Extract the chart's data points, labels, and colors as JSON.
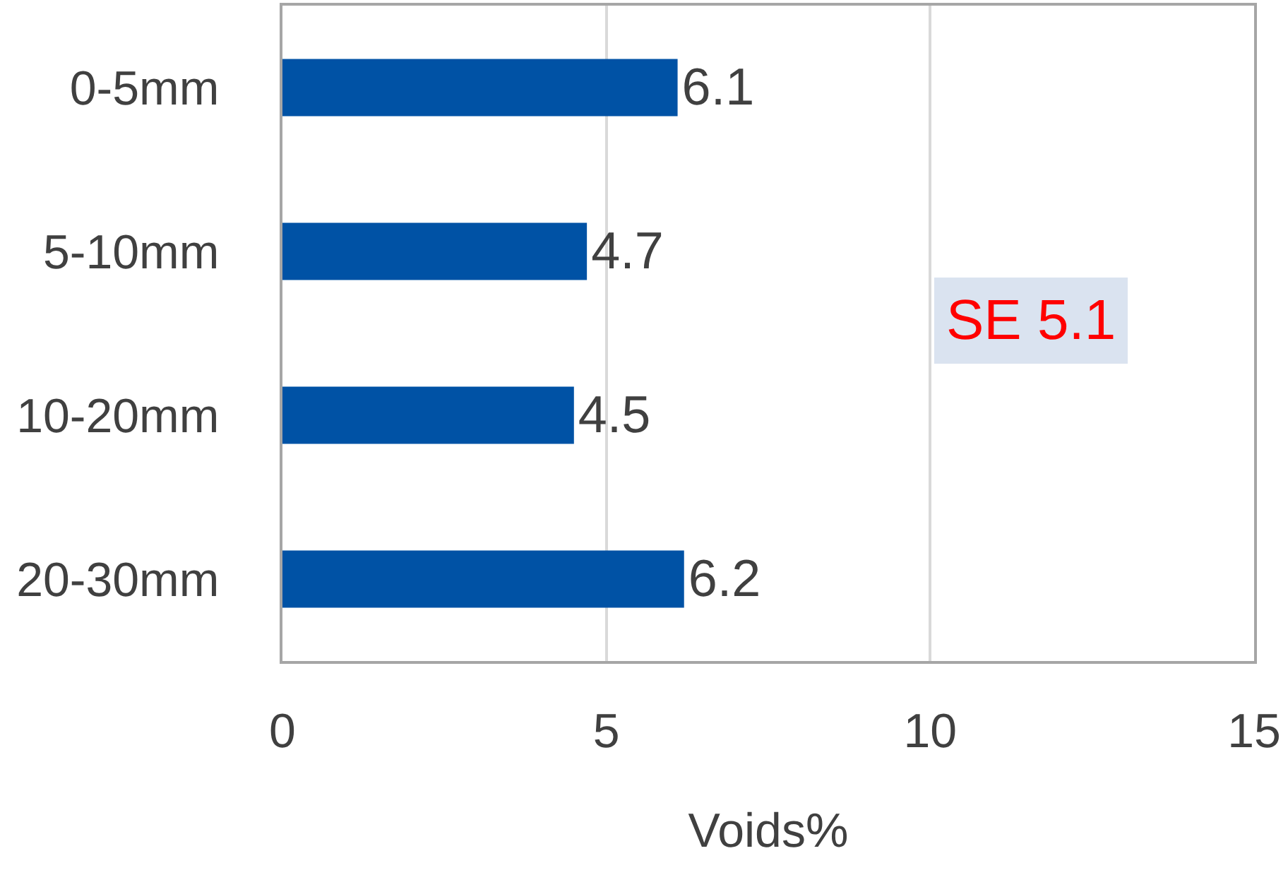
{
  "chart_data": {
    "type": "bar",
    "orientation": "horizontal",
    "categories": [
      "0-5mm",
      "5-10mm",
      "10-20mm",
      "20-30mm"
    ],
    "values": [
      6.1,
      4.7,
      4.5,
      6.2
    ],
    "color": "#0052a5",
    "xlim": [
      0,
      15
    ],
    "xticks": [
      0,
      5,
      10,
      15
    ],
    "xlabel": "Voids%",
    "grid": "x",
    "data_labels": true,
    "legend": false,
    "annotations": [
      "SE 5.1"
    ]
  }
}
